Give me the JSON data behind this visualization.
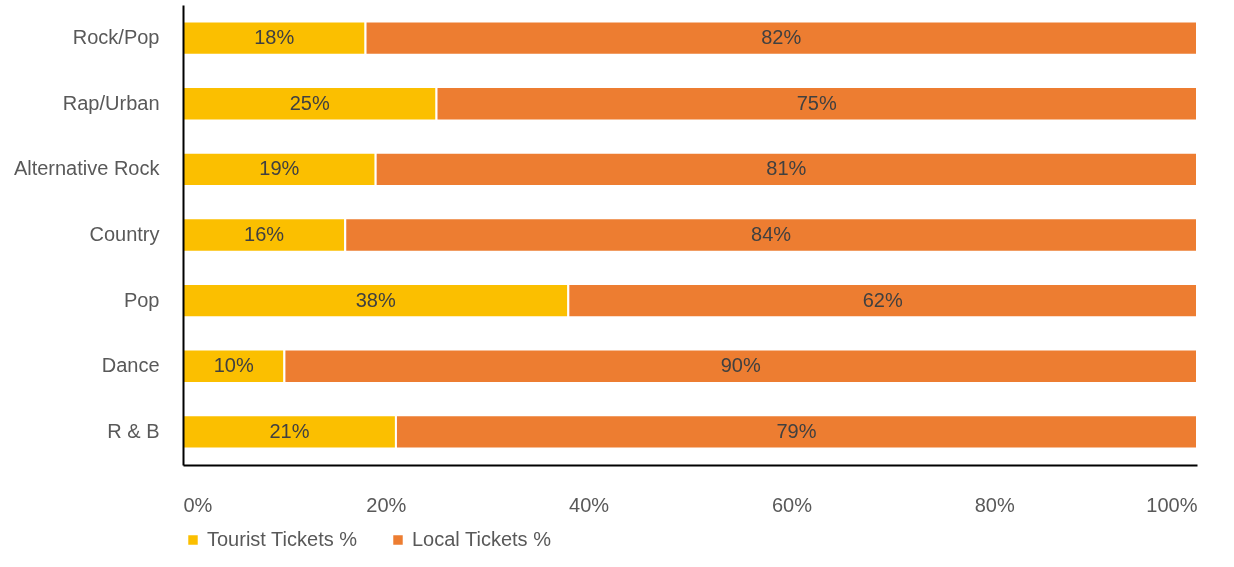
{
  "chart_data": {
    "type": "bar",
    "orientation": "horizontal",
    "stacked": true,
    "categories": [
      "Rock/Pop",
      "Rap/Urban",
      "Alternative Rock",
      "Country",
      "Pop",
      "Dance",
      "R & B"
    ],
    "series": [
      {
        "name": "Tourist Tickets %",
        "color": "#fbbf00",
        "values": [
          18,
          25,
          19,
          16,
          38,
          10,
          21
        ],
        "value_labels": [
          "18%",
          "25%",
          "19%",
          "16%",
          "38%",
          "10%",
          "21%"
        ]
      },
      {
        "name": "Local Tickets %",
        "color": "#ed7d31",
        "values": [
          82,
          75,
          81,
          84,
          62,
          90,
          79
        ],
        "value_labels": [
          "82%",
          "75%",
          "81%",
          "84%",
          "62%",
          "90%",
          "79%"
        ]
      }
    ],
    "xlim": [
      0,
      100
    ],
    "xticks": [
      {
        "value": 0,
        "label": "0%"
      },
      {
        "value": 20,
        "label": "20%"
      },
      {
        "value": 40,
        "label": "40%"
      },
      {
        "value": 60,
        "label": "60%"
      },
      {
        "value": 80,
        "label": "80%"
      },
      {
        "value": 100,
        "label": "100%"
      }
    ],
    "grid": false,
    "legend": "bottom"
  }
}
